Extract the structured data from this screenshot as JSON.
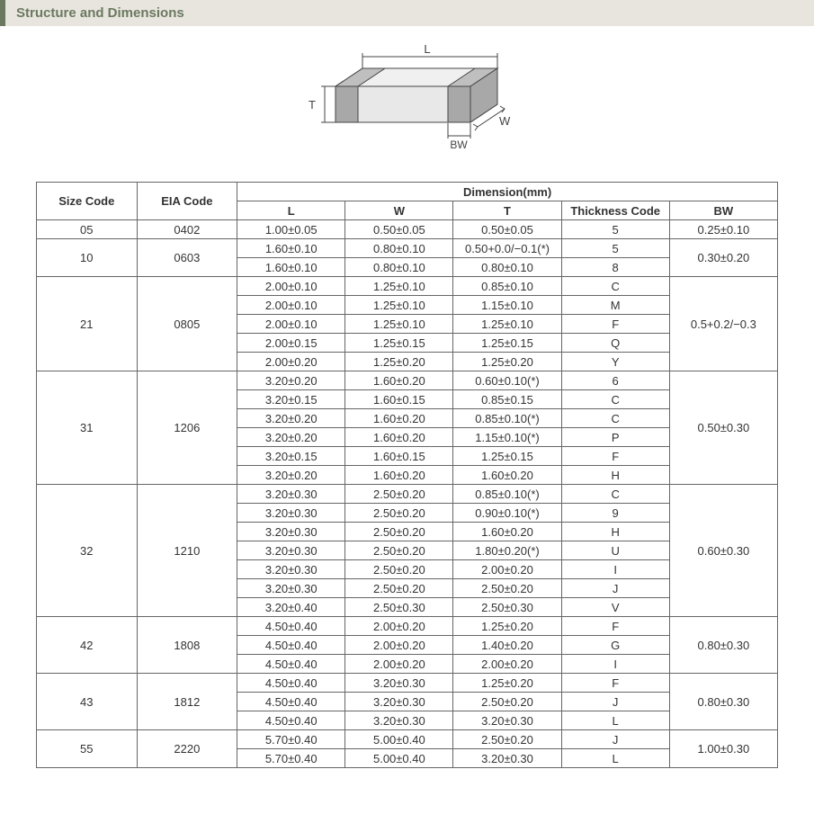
{
  "header": {
    "title": "Structure and Dimensions"
  },
  "diagram": {
    "labels": {
      "L": "L",
      "W": "W",
      "T": "T",
      "BW": "BW"
    },
    "stroke": "#444444",
    "fill_top": "#f0f0f0",
    "fill_side": "#d8d8d8",
    "fill_front": "#e8e8e8",
    "fill_band": "#bfbfbf",
    "fill_band_dark": "#a8a8a8"
  },
  "table": {
    "headers": {
      "size_code": "Size Code",
      "eia_code": "EIA Code",
      "dimension": "Dimension(mm)",
      "L": "L",
      "W": "W",
      "T": "T",
      "thickness_code": "Thickness Code",
      "BW": "BW"
    },
    "groups": [
      {
        "size": "05",
        "eia": "0402",
        "bw": "0.25±0.10",
        "rows": [
          {
            "L": "1.00±0.05",
            "W": "0.50±0.05",
            "T": "0.50±0.05",
            "thk": "5"
          }
        ]
      },
      {
        "size": "10",
        "eia": "0603",
        "bw": "0.30±0.20",
        "rows": [
          {
            "L": "1.60±0.10",
            "W": "0.80±0.10",
            "T": "0.50+0.0/−0.1(*)",
            "thk": "5"
          },
          {
            "L": "1.60±0.10",
            "W": "0.80±0.10",
            "T": "0.80±0.10",
            "thk": "8"
          }
        ]
      },
      {
        "size": "21",
        "eia": "0805",
        "bw": "0.5+0.2/−0.3",
        "rows": [
          {
            "L": "2.00±0.10",
            "W": "1.25±0.10",
            "T": "0.85±0.10",
            "thk": "C"
          },
          {
            "L": "2.00±0.10",
            "W": "1.25±0.10",
            "T": "1.15±0.10",
            "thk": "M"
          },
          {
            "L": "2.00±0.10",
            "W": "1.25±0.10",
            "T": "1.25±0.10",
            "thk": "F"
          },
          {
            "L": "2.00±0.15",
            "W": "1.25±0.15",
            "T": "1.25±0.15",
            "thk": "Q"
          },
          {
            "L": "2.00±0.20",
            "W": "1.25±0.20",
            "T": "1.25±0.20",
            "thk": "Y"
          }
        ]
      },
      {
        "size": "31",
        "eia": "1206",
        "bw": "0.50±0.30",
        "rows": [
          {
            "L": "3.20±0.20",
            "W": "1.60±0.20",
            "T": "0.60±0.10(*)",
            "thk": "6"
          },
          {
            "L": "3.20±0.15",
            "W": "1.60±0.15",
            "T": "0.85±0.15",
            "thk": "C"
          },
          {
            "L": "3.20±0.20",
            "W": "1.60±0.20",
            "T": "0.85±0.10(*)",
            "thk": "C"
          },
          {
            "L": "3.20±0.20",
            "W": "1.60±0.20",
            "T": "1.15±0.10(*)",
            "thk": "P"
          },
          {
            "L": "3.20±0.15",
            "W": "1.60±0.15",
            "T": "1.25±0.15",
            "thk": "F"
          },
          {
            "L": "3.20±0.20",
            "W": "1.60±0.20",
            "T": "1.60±0.20",
            "thk": "H"
          }
        ]
      },
      {
        "size": "32",
        "eia": "1210",
        "bw": "0.60±0.30",
        "rows": [
          {
            "L": "3.20±0.30",
            "W": "2.50±0.20",
            "T": "0.85±0.10(*)",
            "thk": "C"
          },
          {
            "L": "3.20±0.30",
            "W": "2.50±0.20",
            "T": "0.90±0.10(*)",
            "thk": "9"
          },
          {
            "L": "3.20±0.30",
            "W": "2.50±0.20",
            "T": "1.60±0.20",
            "thk": "H"
          },
          {
            "L": "3.20±0.30",
            "W": "2.50±0.20",
            "T": "1.80±0.20(*)",
            "thk": "U"
          },
          {
            "L": "3.20±0.30",
            "W": "2.50±0.20",
            "T": "2.00±0.20",
            "thk": "I"
          },
          {
            "L": "3.20±0.30",
            "W": "2.50±0.20",
            "T": "2.50±0.20",
            "thk": "J"
          },
          {
            "L": "3.20±0.40",
            "W": "2.50±0.30",
            "T": "2.50±0.30",
            "thk": "V"
          }
        ]
      },
      {
        "size": "42",
        "eia": "1808",
        "bw": "0.80±0.30",
        "rows": [
          {
            "L": "4.50±0.40",
            "W": "2.00±0.20",
            "T": "1.25±0.20",
            "thk": "F"
          },
          {
            "L": "4.50±0.40",
            "W": "2.00±0.20",
            "T": "1.40±0.20",
            "thk": "G"
          },
          {
            "L": "4.50±0.40",
            "W": "2.00±0.20",
            "T": "2.00±0.20",
            "thk": "I"
          }
        ]
      },
      {
        "size": "43",
        "eia": "1812",
        "bw": "0.80±0.30",
        "rows": [
          {
            "L": "4.50±0.40",
            "W": "3.20±0.30",
            "T": "1.25±0.20",
            "thk": "F"
          },
          {
            "L": "4.50±0.40",
            "W": "3.20±0.30",
            "T": "2.50±0.20",
            "thk": "J"
          },
          {
            "L": "4.50±0.40",
            "W": "3.20±0.30",
            "T": "3.20±0.30",
            "thk": "L"
          }
        ]
      },
      {
        "size": "55",
        "eia": "2220",
        "bw": "1.00±0.30",
        "rows": [
          {
            "L": "5.70±0.40",
            "W": "5.00±0.40",
            "T": "2.50±0.20",
            "thk": "J"
          },
          {
            "L": "5.70±0.40",
            "W": "5.00±0.40",
            "T": "3.20±0.30",
            "thk": "L"
          }
        ]
      }
    ]
  },
  "colors": {
    "header_bg": "#e8e5de",
    "header_accent": "#6b7960",
    "table_border": "#666666"
  }
}
